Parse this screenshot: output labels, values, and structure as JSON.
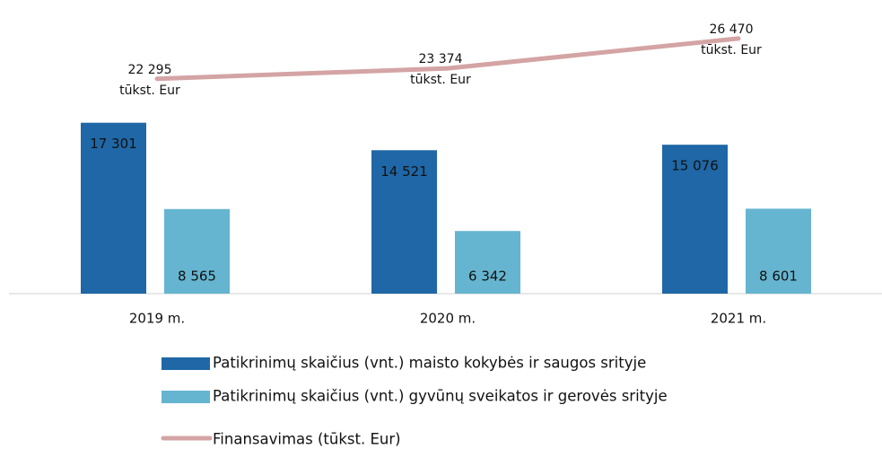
{
  "chart_data": {
    "type": "bar",
    "categories": [
      "2019 m.",
      "2020 m.",
      "2021 m."
    ],
    "ylim": [
      0,
      20000
    ],
    "y2lim": [
      0,
      30000
    ],
    "series": [
      {
        "name": "Patikrinimų skaičius (vnt.) maisto kokybės ir saugos srityje",
        "color": "#1f67a6",
        "values": [
          17301,
          14521,
          15076
        ],
        "value_labels": [
          "17 301",
          "14 521",
          "15 076"
        ]
      },
      {
        "name": "Patikrinimų skaičius (vnt.) gyvūnų sveikatos ir gerovės srityje",
        "color": "#65b5d0",
        "values": [
          8565,
          6342,
          8601
        ],
        "value_labels": [
          "8 565",
          "6 342",
          "8 601"
        ]
      },
      {
        "name": "Finansavimas (tūkst. Eur)",
        "type": "line",
        "axis": "y2",
        "color": "#d4a4a5",
        "values": [
          22295,
          23374,
          26470
        ],
        "value_labels": [
          "22 295\ntūkst. Eur",
          "23 374\ntūkst. Eur",
          "26 470\ntūkst. Eur"
        ]
      }
    ]
  }
}
